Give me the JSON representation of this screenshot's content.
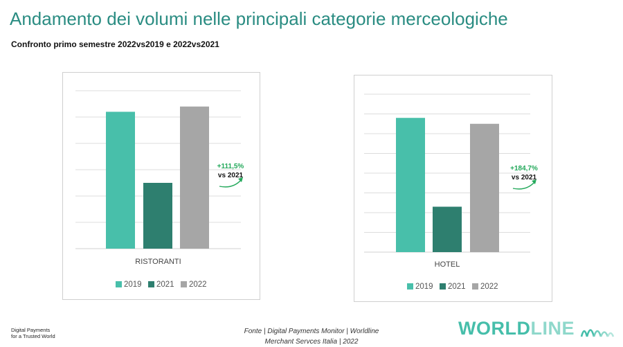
{
  "header": {
    "title": "Andamento dei volumi nelle principali categorie merceologiche",
    "subtitle": "Confronto primo semestre 2022vs2019 e 2022vs2021"
  },
  "chart_data": [
    {
      "type": "bar",
      "categories": [
        "RISTORANTI"
      ],
      "series": [
        {
          "name": "2019",
          "values": [
            5.2
          ],
          "color": "#48bfaa"
        },
        {
          "name": "2021",
          "values": [
            2.5
          ],
          "color": "#2e7f6f"
        },
        {
          "name": "2022",
          "values": [
            5.4
          ],
          "color": "#a6a6a6"
        }
      ],
      "ylim": [
        0,
        6
      ],
      "grid": true,
      "legend": "bottom",
      "annotation": {
        "value": "+111,5%",
        "text": "vs 2021",
        "color": "#22a85a"
      }
    },
    {
      "type": "bar",
      "categories": [
        "HOTEL"
      ],
      "series": [
        {
          "name": "2019",
          "values": [
            6.8
          ],
          "color": "#48bfaa"
        },
        {
          "name": "2021",
          "values": [
            2.3
          ],
          "color": "#2e7f6f"
        },
        {
          "name": "2022",
          "values": [
            6.5
          ],
          "color": "#a6a6a6"
        }
      ],
      "ylim": [
        0,
        8
      ],
      "grid": true,
      "legend": "bottom",
      "annotation": {
        "value": "+184,7%",
        "text": "vs 2021",
        "color": "#22a85a"
      }
    }
  ],
  "footer": {
    "tagline_line1": "Digital Payments",
    "tagline_line2": "for a Trusted World",
    "source_line1": "Fonte | Digital Payments Monitor | Worldline",
    "source_line2": "Merchant Servces Italia | 2022",
    "logo_text": "WORLDLINE",
    "logo_mark": "worldline-waves-logo"
  }
}
